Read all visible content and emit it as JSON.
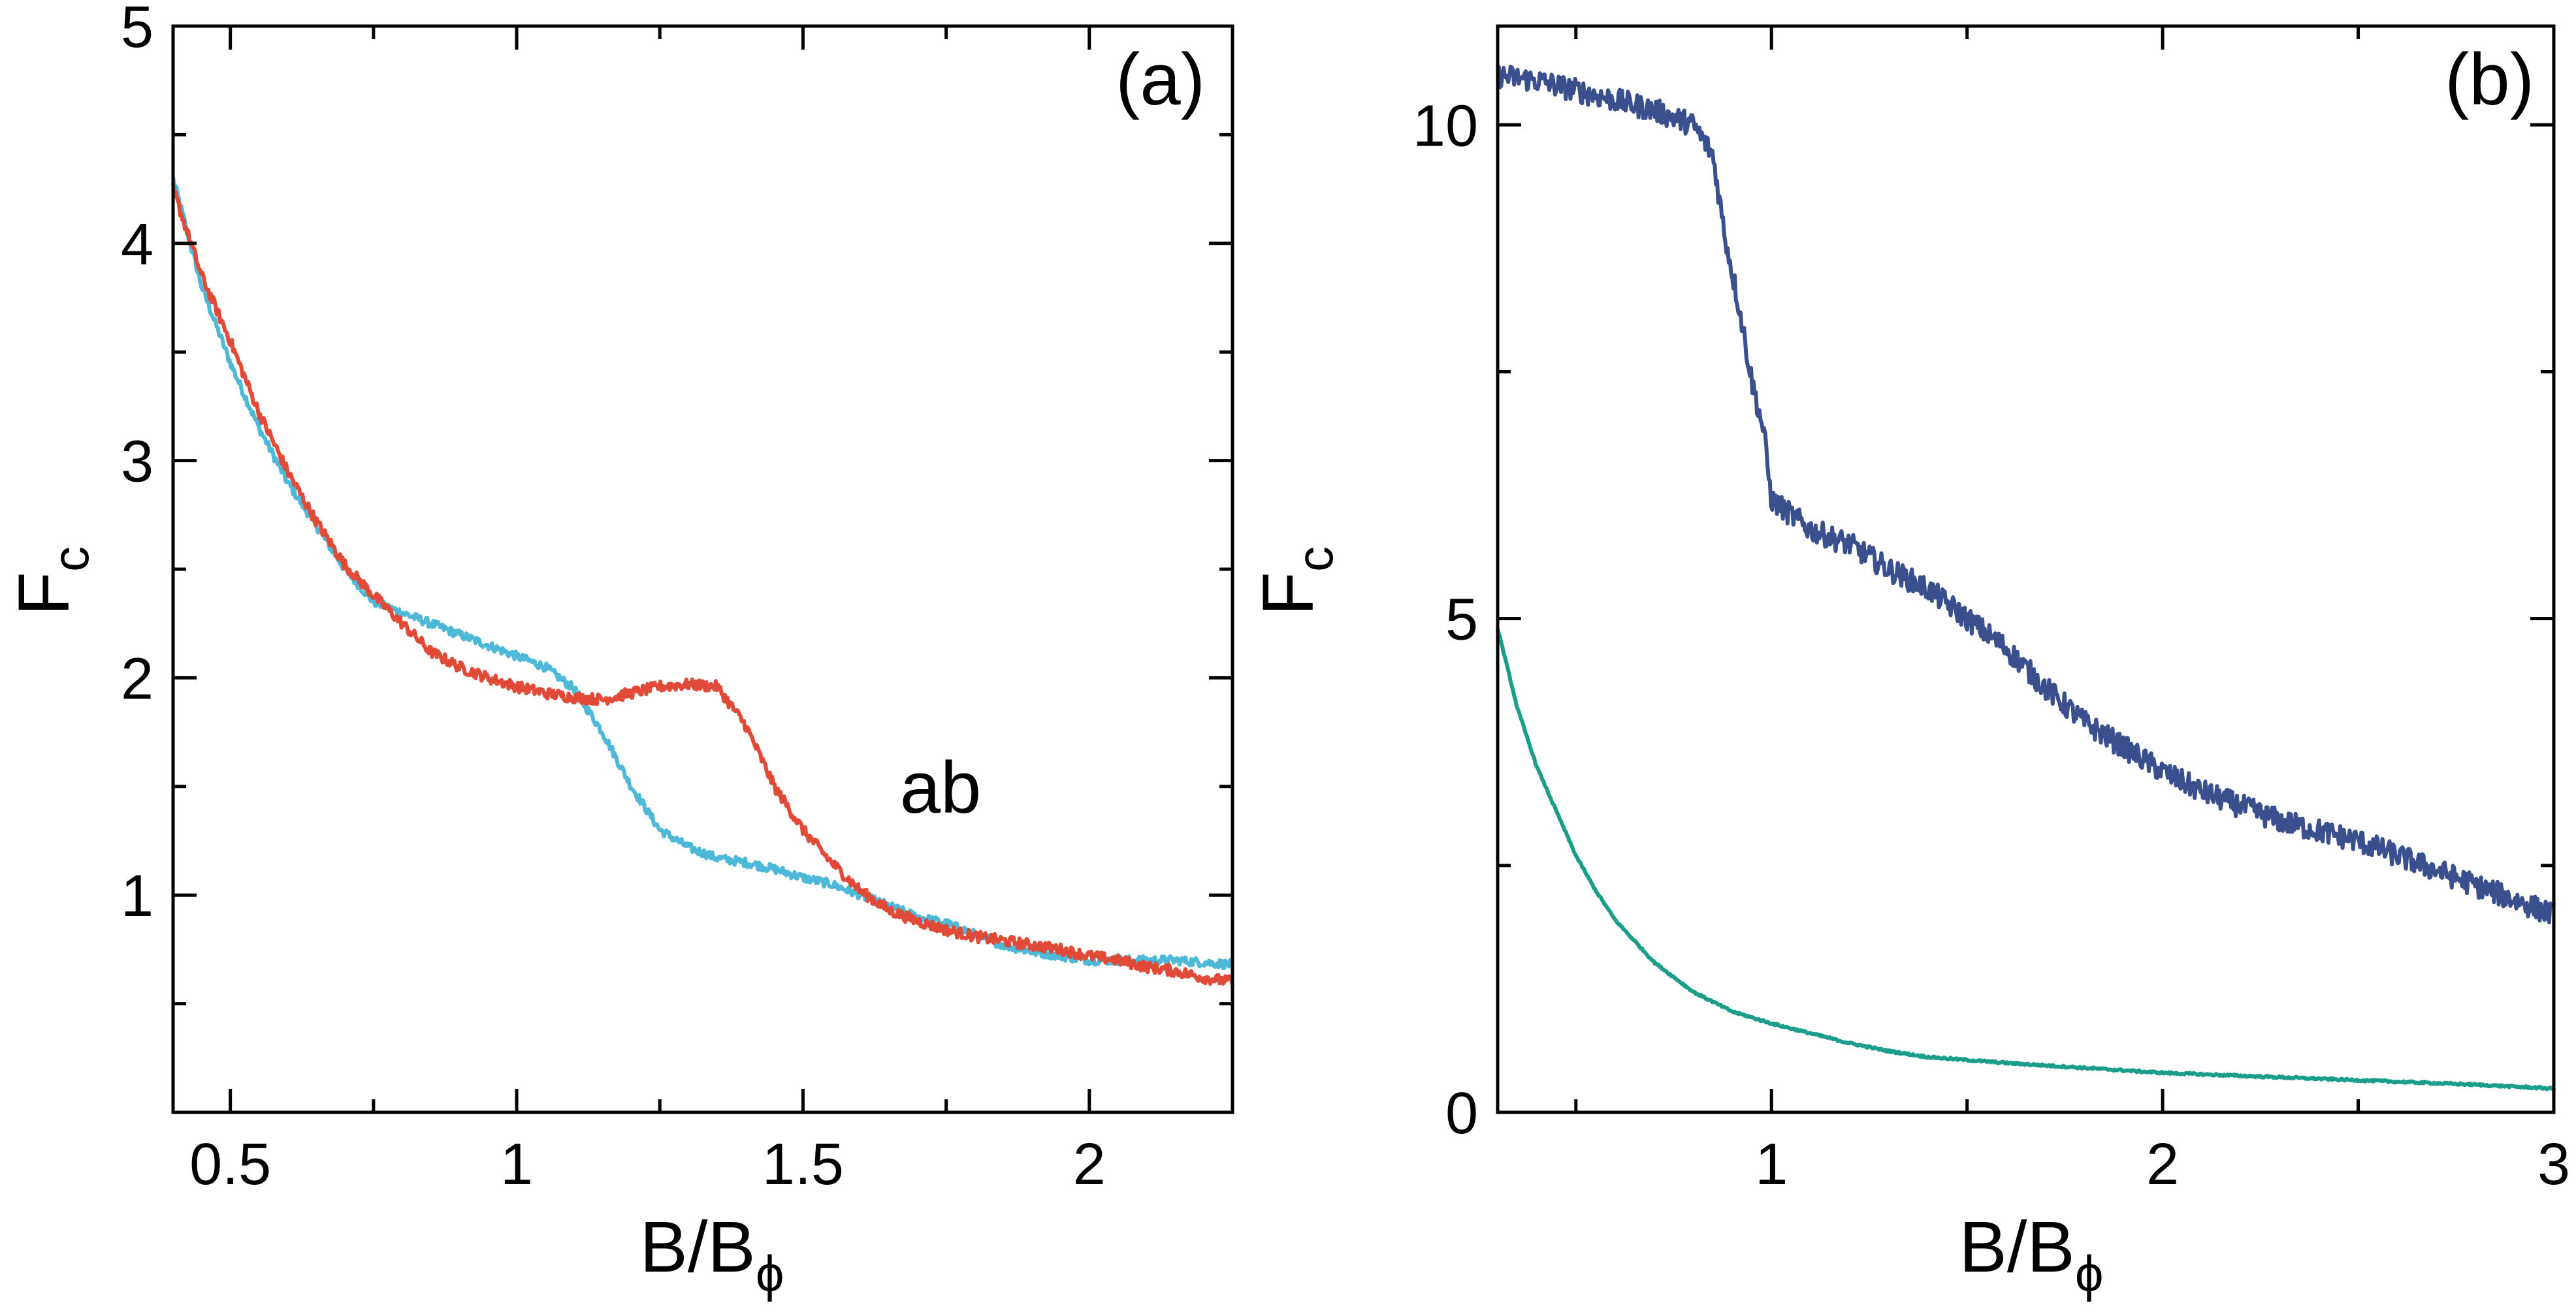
{
  "chart_data": [
    {
      "type": "line",
      "panel_label": "(a)",
      "xlabel": {
        "main": "B/B",
        "sub": "ϕ"
      },
      "ylabel": {
        "main": "F",
        "sub": "c"
      },
      "xlim": [
        0.4,
        2.25
      ],
      "ylim": [
        0,
        5
      ],
      "xticks": [
        0.5,
        1,
        1.5,
        2
      ],
      "xtick_labels": [
        "0.5",
        "1",
        "1.5",
        "2"
      ],
      "yticks": [
        1,
        2,
        3,
        4,
        5
      ],
      "ytick_labels": [
        "1",
        "2",
        "3",
        "4",
        "5"
      ],
      "annotation": {
        "text": "ab",
        "x": 1.75,
        "y": 1.45
      },
      "series": [
        {
          "name": "cyan",
          "color": "#4db8d8",
          "noise": 0.02,
          "x": [
            0.4,
            0.45,
            0.5,
            0.55,
            0.6,
            0.65,
            0.7,
            0.75,
            0.8,
            0.85,
            0.9,
            0.95,
            1.0,
            1.05,
            1.1,
            1.15,
            1.2,
            1.25,
            1.3,
            1.35,
            1.4,
            1.45,
            1.5,
            1.55,
            1.6,
            1.65,
            1.7,
            1.75,
            1.8,
            1.85,
            1.9,
            1.95,
            2.0,
            2.05,
            2.1,
            2.15,
            2.2,
            2.25
          ],
          "y": [
            4.3,
            3.8,
            3.45,
            3.15,
            2.9,
            2.7,
            2.5,
            2.35,
            2.3,
            2.25,
            2.2,
            2.15,
            2.1,
            2.05,
            1.95,
            1.75,
            1.5,
            1.3,
            1.22,
            1.17,
            1.15,
            1.12,
            1.08,
            1.05,
            1.0,
            0.95,
            0.9,
            0.87,
            0.82,
            0.77,
            0.74,
            0.72,
            0.7,
            0.7,
            0.7,
            0.7,
            0.69,
            0.68
          ]
        },
        {
          "name": "red",
          "color": "#e04a36",
          "noise": 0.025,
          "x": [
            0.4,
            0.45,
            0.5,
            0.55,
            0.6,
            0.65,
            0.7,
            0.75,
            0.8,
            0.85,
            0.9,
            0.95,
            1.0,
            1.05,
            1.1,
            1.15,
            1.2,
            1.25,
            1.3,
            1.35,
            1.4,
            1.45,
            1.5,
            1.55,
            1.6,
            1.65,
            1.7,
            1.75,
            1.8,
            1.85,
            1.9,
            1.95,
            2.0,
            2.05,
            2.1,
            2.15,
            2.2,
            2.25
          ],
          "y": [
            4.25,
            3.85,
            3.55,
            3.22,
            2.95,
            2.72,
            2.52,
            2.38,
            2.25,
            2.12,
            2.05,
            2.0,
            1.96,
            1.93,
            1.91,
            1.9,
            1.93,
            1.96,
            1.97,
            1.96,
            1.78,
            1.5,
            1.3,
            1.15,
            1.02,
            0.93,
            0.88,
            0.84,
            0.81,
            0.79,
            0.77,
            0.75,
            0.72,
            0.7,
            0.67,
            0.65,
            0.62,
            0.6
          ]
        }
      ]
    },
    {
      "type": "line",
      "panel_label": "(b)",
      "xlabel": {
        "main": "B/B",
        "sub": "ϕ"
      },
      "ylabel": {
        "main": "F",
        "sub": "c"
      },
      "xlim": [
        0.3,
        3.0
      ],
      "ylim": [
        0,
        11
      ],
      "xticks": [
        1,
        2,
        3
      ],
      "xtick_labels": [
        "1",
        "2",
        "3"
      ],
      "yticks": [
        0,
        5,
        10
      ],
      "ytick_labels": [
        "0",
        "5",
        "10"
      ],
      "series": [
        {
          "name": "navy",
          "color": "#3a4f8e",
          "noise": 0.12,
          "x": [
            0.3,
            0.4,
            0.5,
            0.6,
            0.7,
            0.8,
            0.85,
            0.88,
            0.92,
            0.95,
            0.98,
            1.0,
            1.1,
            1.2,
            1.3,
            1.4,
            1.5,
            1.6,
            1.7,
            1.8,
            1.9,
            2.0,
            2.1,
            2.2,
            2.3,
            2.4,
            2.5,
            2.6,
            2.7,
            2.8,
            2.9,
            3.0
          ],
          "y": [
            10.5,
            10.45,
            10.35,
            10.25,
            10.15,
            10.0,
            9.7,
            8.9,
            8.1,
            7.4,
            6.9,
            6.2,
            5.9,
            5.75,
            5.5,
            5.3,
            5.0,
            4.7,
            4.3,
            3.95,
            3.7,
            3.45,
            3.25,
            3.1,
            2.95,
            2.85,
            2.75,
            2.6,
            2.45,
            2.3,
            2.15,
            2.0
          ]
        },
        {
          "name": "teal",
          "color": "#1a9e8a",
          "noise": 0.01,
          "x": [
            0.3,
            0.35,
            0.4,
            0.45,
            0.5,
            0.55,
            0.6,
            0.7,
            0.8,
            0.9,
            1.0,
            1.1,
            1.2,
            1.3,
            1.4,
            1.6,
            1.8,
            2.0,
            2.2,
            2.4,
            2.6,
            2.8,
            3.0
          ],
          "y": [
            4.9,
            4.1,
            3.5,
            3.05,
            2.6,
            2.25,
            1.95,
            1.52,
            1.22,
            1.02,
            0.9,
            0.8,
            0.7,
            0.62,
            0.56,
            0.5,
            0.45,
            0.4,
            0.37,
            0.34,
            0.31,
            0.28,
            0.24
          ]
        }
      ]
    }
  ]
}
